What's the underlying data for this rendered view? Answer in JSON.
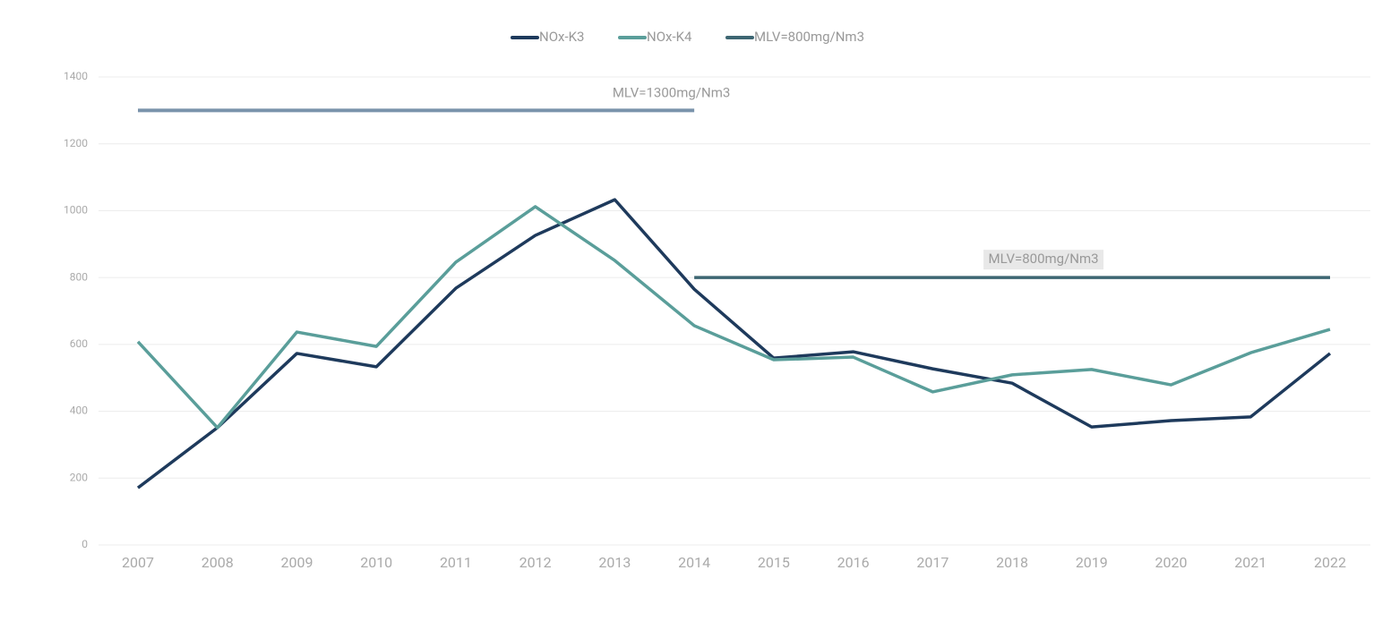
{
  "chart_data": {
    "type": "line",
    "categories": [
      "2007",
      "2008",
      "2009",
      "2010",
      "2011",
      "2012",
      "2013",
      "2014",
      "2015",
      "2016",
      "2017",
      "2018",
      "2019",
      "2020",
      "2021",
      "2022"
    ],
    "series": [
      {
        "name": "NOx-K3",
        "color": "#1e3a5c",
        "values": [
          171,
          351,
          573,
          533,
          768,
          926,
          1033,
          765,
          559,
          578,
          527,
          484,
          353,
          372,
          383,
          573
        ]
      },
      {
        "name": "NOx-K4",
        "color": "#5a9e9a",
        "values": [
          608,
          351,
          637,
          594,
          846,
          1012,
          851,
          656,
          554,
          562,
          458,
          509,
          525,
          479,
          575,
          645
        ]
      },
      {
        "name": "MLV=800mg/Nm3",
        "color": "#3d6672",
        "values": [
          null,
          null,
          null,
          null,
          null,
          null,
          null,
          800,
          800,
          800,
          800,
          800,
          800,
          800,
          800,
          800
        ]
      }
    ],
    "annotations": [
      {
        "text": "MLV=1300mg/Nm3",
        "value": 1300,
        "from": "2007",
        "to": "2014",
        "color": "#7a93ab"
      },
      {
        "text": "MLV=800mg/Nm3",
        "at": "2018",
        "value": 800
      }
    ],
    "ylim": [
      0,
      1400
    ],
    "yticks": [
      0,
      200,
      400,
      600,
      800,
      1000,
      1200,
      1400
    ],
    "grid": true,
    "legend": "top"
  }
}
